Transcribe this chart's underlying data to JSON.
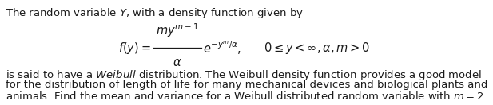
{
  "background_color": "#ffffff",
  "text_color": "#1a1a1a",
  "fig_width": 6.17,
  "fig_height": 1.32,
  "dpi": 100,
  "font_size_main": 9.5,
  "font_size_formula": 10.5,
  "line1": "The random variable $Y$, with a density function given by",
  "line3": "is said to have a $\\mathit{Weibull}$ distribution. The Weibull density function provides a good model",
  "line4": "for the distribution of length of life for many mechanical devices and biological plants and",
  "line5": "animals. Find the mean and variance for a Weibull distributed random variable with $m = 2$.",
  "formula_left": "$f(y) = $",
  "formula_num": "$my^{m-1}$",
  "formula_den": "$\\alpha$",
  "formula_exp": "$e^{-y^m/\\alpha},$",
  "formula_cond": "$0 \\leq y < \\infty, \\alpha, m > 0$"
}
